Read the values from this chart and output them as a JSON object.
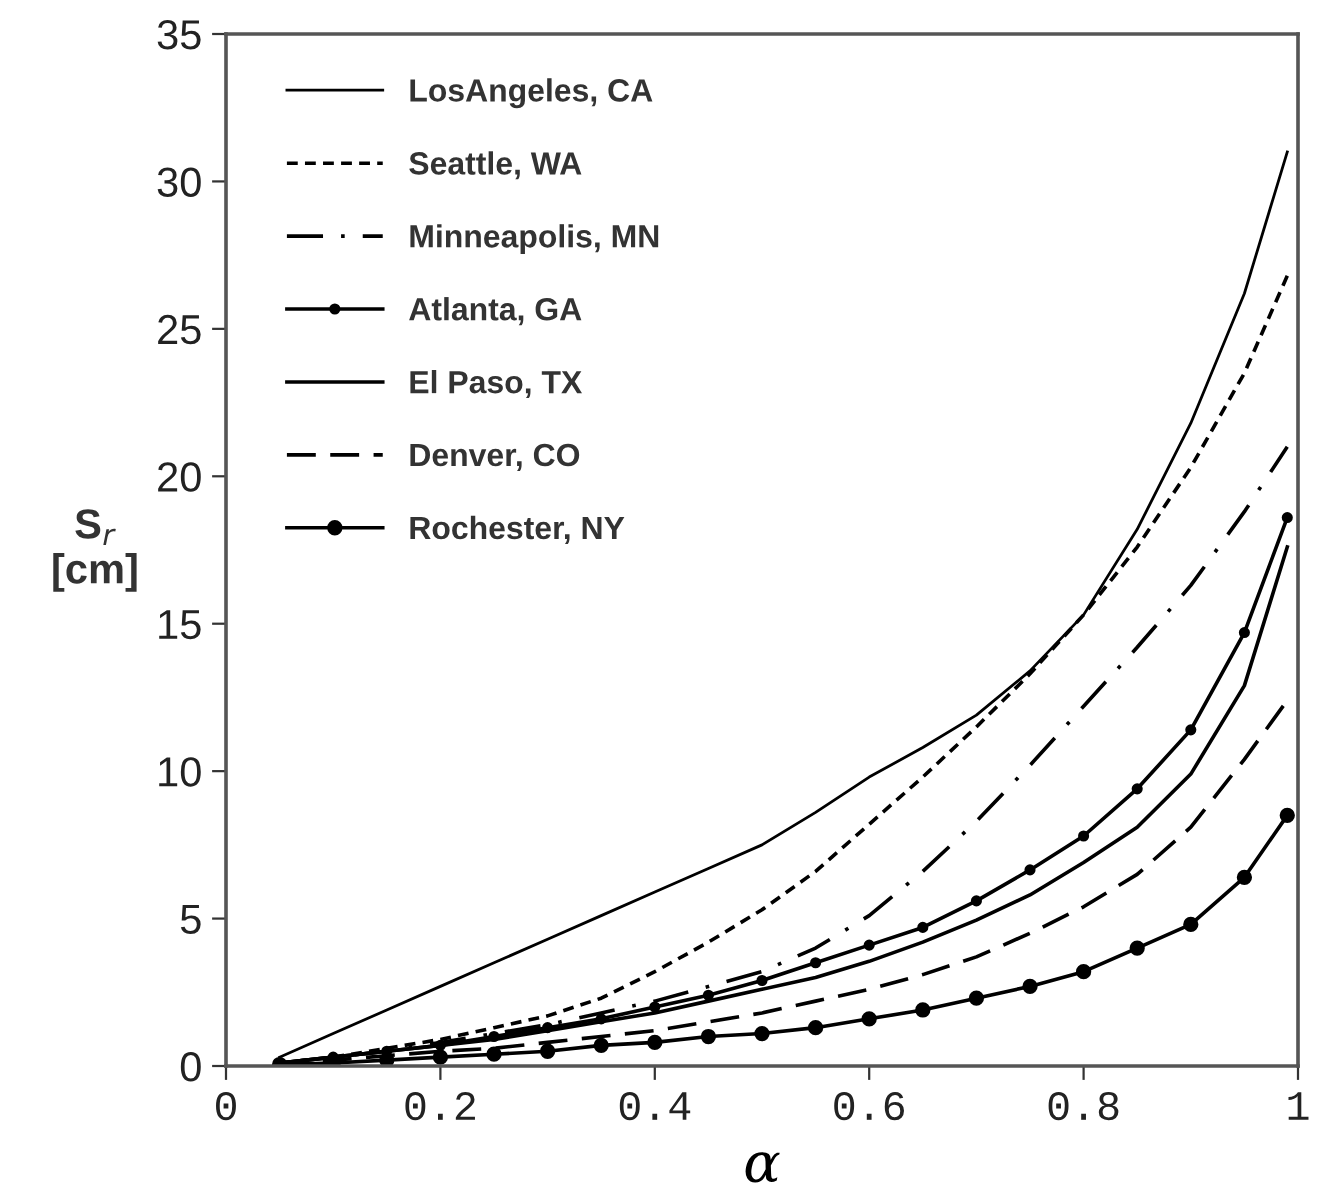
{
  "chart_data": {
    "type": "line",
    "xlabel": "α",
    "ylabel": "S$_{r}$\n[cm]",
    "x": [
      0.05,
      0.1,
      0.15,
      0.2,
      0.25,
      0.3,
      0.35,
      0.4,
      0.45,
      0.5,
      0.55,
      0.6,
      0.65,
      0.7,
      0.75,
      0.8,
      0.85,
      0.9,
      0.95,
      0.99
    ],
    "series": [
      {
        "name": "LosAngeles, CA",
        "color": "#000000",
        "line_style": "solid",
        "marker": "none",
        "values": [
          0.3,
          1.1,
          1.9,
          2.7,
          3.5,
          4.3,
          5.1,
          5.9,
          6.7,
          7.5,
          8.6,
          9.8,
          10.8,
          11.9,
          13.4,
          15.3,
          18.2,
          21.8,
          26.2,
          31.0
        ]
      },
      {
        "name": "Seattle, WA",
        "color": "#000000",
        "line_style": "dashed",
        "marker": "none",
        "values": [
          0.1,
          0.3,
          0.6,
          0.9,
          1.3,
          1.7,
          2.3,
          3.2,
          4.2,
          5.3,
          6.6,
          8.2,
          9.8,
          11.5,
          13.3,
          15.3,
          17.6,
          20.3,
          23.5,
          26.8
        ]
      },
      {
        "name": "Minneapolis, MN",
        "color": "#000000",
        "line_style": "dashdot",
        "marker": "none",
        "values": [
          0.1,
          0.3,
          0.5,
          0.8,
          1.1,
          1.4,
          1.8,
          2.2,
          2.7,
          3.2,
          4.0,
          5.1,
          6.6,
          8.3,
          10.2,
          12.2,
          14.2,
          16.3,
          18.8,
          21.0
        ]
      },
      {
        "name": "Atlanta, GA",
        "color": "#000000",
        "line_style": "solid",
        "marker": "circle",
        "values": [
          0.1,
          0.3,
          0.5,
          0.7,
          1.0,
          1.3,
          1.6,
          2.0,
          2.4,
          2.9,
          3.5,
          4.1,
          4.7,
          5.6,
          6.65,
          7.8,
          9.4,
          11.4,
          14.7,
          18.6
        ]
      },
      {
        "name": "El Paso, TX",
        "color": "#000000",
        "line_style": "solid",
        "marker": "none",
        "values": [
          0.1,
          0.3,
          0.5,
          0.7,
          0.9,
          1.2,
          1.5,
          1.8,
          2.2,
          2.6,
          3.0,
          3.55,
          4.2,
          4.95,
          5.8,
          6.9,
          8.1,
          9.9,
          12.9,
          17.6
        ]
      },
      {
        "name": "Denver, CO",
        "color": "#000000",
        "line_style": "longdash",
        "marker": "none",
        "values": [
          0.05,
          0.2,
          0.35,
          0.5,
          0.6,
          0.8,
          1.0,
          1.2,
          1.5,
          1.8,
          2.2,
          2.6,
          3.1,
          3.7,
          4.5,
          5.4,
          6.5,
          8.1,
          10.4,
          12.4
        ]
      },
      {
        "name": "Rochester, NY",
        "color": "#000000",
        "line_style": "solid",
        "marker": "circle",
        "values": [
          0.05,
          0.1,
          0.2,
          0.3,
          0.4,
          0.5,
          0.7,
          0.8,
          1.0,
          1.1,
          1.3,
          1.6,
          1.9,
          2.3,
          2.7,
          3.2,
          4.0,
          4.8,
          6.4,
          8.5
        ]
      }
    ],
    "xlim": [
      0,
      1
    ],
    "xticks": [
      0,
      0.2,
      0.4,
      0.6,
      0.8,
      1
    ],
    "ylim": [
      0,
      35
    ],
    "yticks": [
      0,
      5,
      10,
      15,
      20,
      25,
      30,
      35
    ],
    "legend": "top left",
    "grid": false
  }
}
